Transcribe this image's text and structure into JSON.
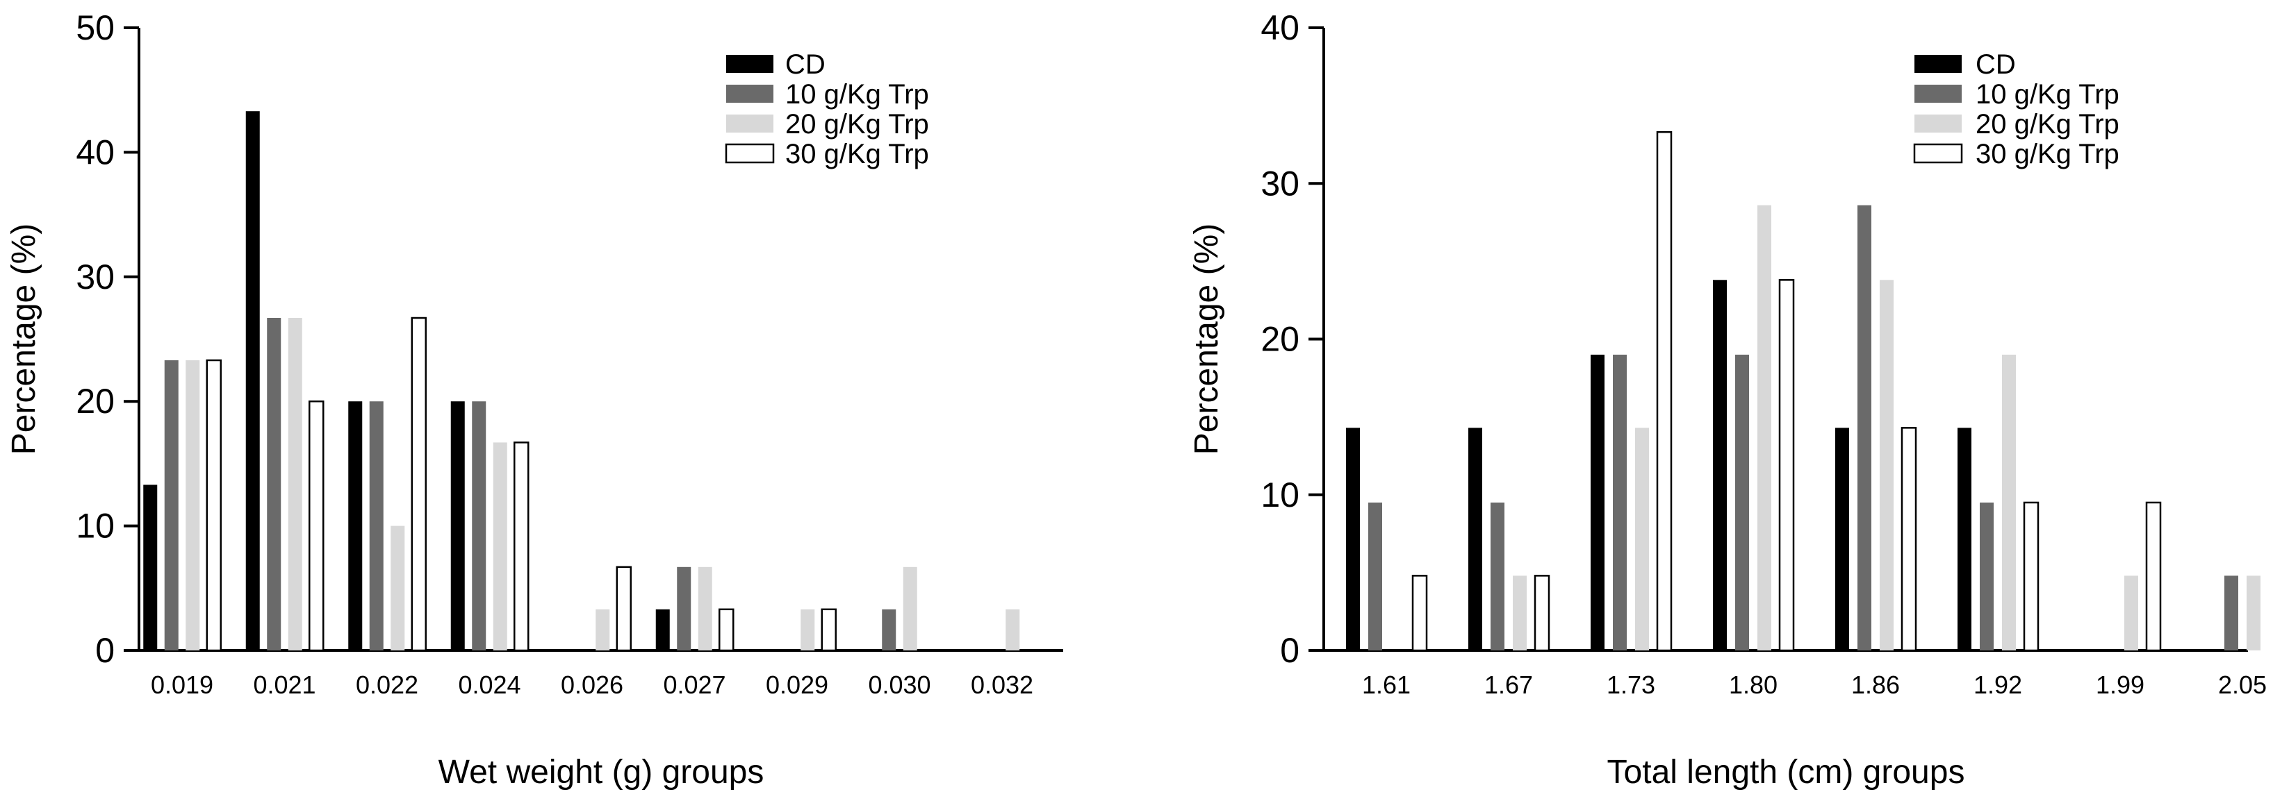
{
  "colors": {
    "CD": "#000000",
    "10 g/Kg Trp": "#6a6a6a",
    "20 g/Kg Trp": "#d8d8d8",
    "30 g/Kg Trp": "#ffffff",
    "axis": "#000000"
  },
  "chart_data": [
    {
      "type": "bar",
      "title": "",
      "xlabel": "Wet weight (g) groups",
      "ylabel": "Percentage (%)",
      "ylim": [
        0,
        50
      ],
      "yticks": [
        "0",
        "10",
        "20",
        "30",
        "40",
        "50"
      ],
      "categories": [
        "0.019",
        "0.021",
        "0.022",
        "0.024",
        "0.026",
        "0.027",
        "0.029",
        "0.030",
        "0.032"
      ],
      "legend_position": "top-right",
      "series": [
        {
          "name": "CD",
          "values": [
            13.3,
            43.3,
            20.0,
            20.0,
            0,
            3.3,
            0,
            0,
            0
          ]
        },
        {
          "name": "10 g/Kg Trp",
          "values": [
            23.3,
            26.7,
            20.0,
            20.0,
            0,
            6.7,
            0,
            3.3,
            0
          ]
        },
        {
          "name": "20 g/Kg Trp",
          "values": [
            23.3,
            26.7,
            10.0,
            16.7,
            3.3,
            6.7,
            3.3,
            6.7,
            3.3
          ]
        },
        {
          "name": "30 g/Kg Trp",
          "values": [
            23.3,
            20.0,
            26.7,
            16.7,
            6.7,
            3.3,
            3.3,
            0,
            0
          ]
        }
      ]
    },
    {
      "type": "bar",
      "title": "",
      "xlabel": "Total length (cm) groups",
      "ylabel": "Percentage (%)",
      "ylim": [
        0,
        40
      ],
      "yticks": [
        "0",
        "10",
        "20",
        "30",
        "40"
      ],
      "categories": [
        "1.61",
        "1.67",
        "1.73",
        "1.80",
        "1.86",
        "1.92",
        "1.99",
        "2.05"
      ],
      "legend_position": "top-right",
      "series": [
        {
          "name": "CD",
          "values": [
            14.3,
            14.3,
            19.0,
            23.8,
            14.3,
            14.3,
            0,
            0
          ]
        },
        {
          "name": "10 g/Kg Trp",
          "values": [
            9.5,
            9.5,
            19.0,
            19.0,
            28.6,
            9.5,
            0,
            4.8
          ]
        },
        {
          "name": "20 g/Kg Trp",
          "values": [
            0,
            4.8,
            14.3,
            28.6,
            23.8,
            19.0,
            4.8,
            4.8
          ]
        },
        {
          "name": "30 g/Kg Trp",
          "values": [
            4.8,
            4.8,
            33.3,
            23.8,
            14.3,
            9.5,
            9.5,
            0
          ]
        }
      ]
    }
  ]
}
